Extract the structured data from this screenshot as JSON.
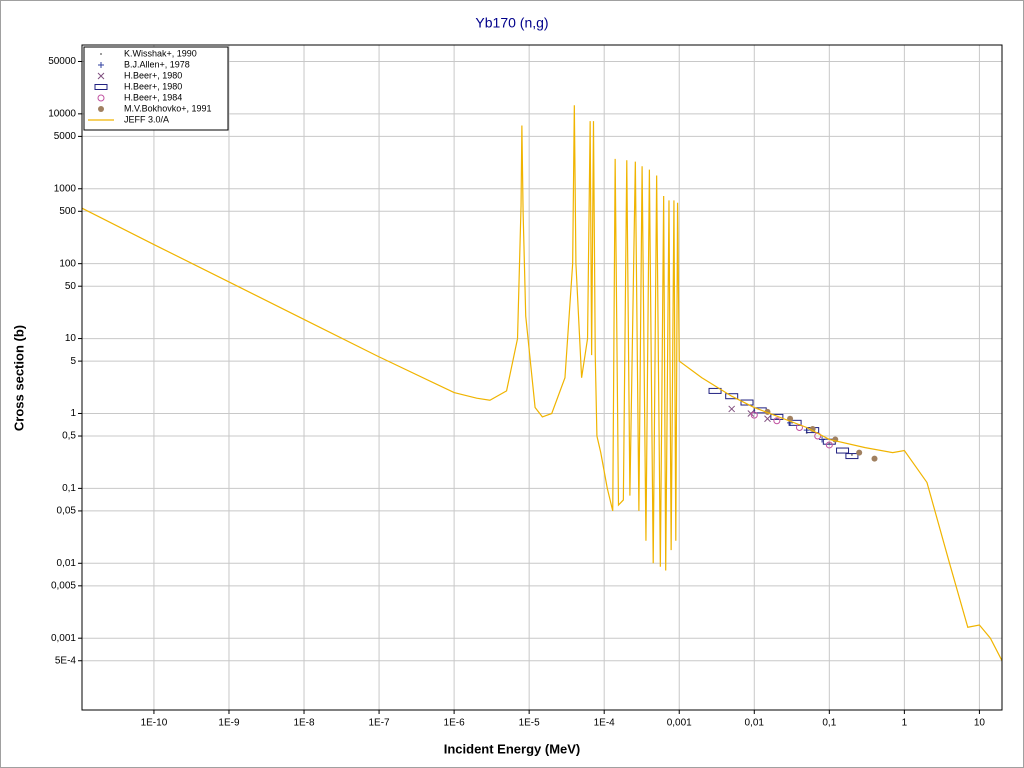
{
  "chart_data": {
    "type": "line",
    "title": "Yb170 (n,g)",
    "x_label": "Incident Energy (MeV)",
    "y_label": "Cross section (b)",
    "log_x": true,
    "log_y": true,
    "grid": true,
    "legend": "upper left",
    "xlim": [
      1.1e-11,
      20
    ],
    "ylim": [
      0.00011,
      83000
    ],
    "xticks": [
      {
        "value": 1e-10,
        "label": "1E-10"
      },
      {
        "value": 1e-09,
        "label": "1E-9"
      },
      {
        "value": 1e-08,
        "label": "1E-8"
      },
      {
        "value": 1e-07,
        "label": "1E-7"
      },
      {
        "value": 1e-06,
        "label": "1E-6"
      },
      {
        "value": 1e-05,
        "label": "1E-5"
      },
      {
        "value": 0.0001,
        "label": "1E-4"
      },
      {
        "value": 0.001,
        "label": "0,001"
      },
      {
        "value": 0.01,
        "label": "0,01"
      },
      {
        "value": 0.1,
        "label": "0,1"
      },
      1,
      10
    ],
    "yticks": [
      50000,
      10000,
      5000,
      1000,
      500,
      100,
      50,
      10,
      5,
      1,
      {
        "value": 0.5,
        "label": "0,5"
      },
      {
        "value": 0.1,
        "label": "0,1"
      },
      {
        "value": 0.05,
        "label": "0,05"
      },
      {
        "value": 0.01,
        "label": "0,01"
      },
      {
        "value": 0.005,
        "label": "0,005"
      },
      {
        "value": 0.001,
        "label": "0,001"
      },
      {
        "value": 0.0005,
        "label": "5E-4"
      }
    ],
    "series": [
      {
        "name": "K.Wisshak+, 1990",
        "type": "scatter",
        "marker": "dot",
        "color": "#808080",
        "x": [
          0.01,
          0.02,
          0.05,
          0.1,
          0.2
        ],
        "values": [
          1.1,
          0.85,
          0.55,
          0.4,
          0.28
        ]
      },
      {
        "name": "B.J.Allen+, 1978",
        "type": "scatter",
        "marker": "plus",
        "color": "#3040a0",
        "x": [
          0.03,
          0.05,
          0.08
        ],
        "values": [
          0.75,
          0.6,
          0.45
        ]
      },
      {
        "name": "H.Beer+, 1980",
        "type": "scatter",
        "marker": "cross",
        "color": "#805080",
        "x": [
          0.005,
          0.009,
          0.015
        ],
        "values": [
          1.15,
          1.0,
          0.85
        ]
      },
      {
        "name": "H.Beer+, 1980",
        "type": "scatter",
        "marker": "square",
        "color": "#202080",
        "x": [
          0.003,
          0.005,
          0.008,
          0.012,
          0.02,
          0.035,
          0.06,
          0.1,
          0.15,
          0.2
        ],
        "values": [
          2.0,
          1.7,
          1.4,
          1.1,
          0.9,
          0.75,
          0.6,
          0.42,
          0.32,
          0.27
        ]
      },
      {
        "name": "H.Beer+, 1984",
        "type": "scatter",
        "marker": "circle",
        "color": "#c050a0",
        "x": [
          0.01,
          0.02,
          0.04,
          0.07,
          0.1
        ],
        "values": [
          0.95,
          0.8,
          0.65,
          0.5,
          0.38
        ]
      },
      {
        "name": "M.V.Bokhovko+, 1991",
        "type": "scatter",
        "marker": "filled",
        "color": "#a08060",
        "x": [
          0.015,
          0.03,
          0.06,
          0.12,
          0.25,
          0.4
        ],
        "values": [
          1.05,
          0.85,
          0.62,
          0.45,
          0.3,
          0.25
        ]
      },
      {
        "name": "JEFF 3.0/A",
        "type": "line",
        "color": "#f0b400",
        "x": [
          1.1e-11,
          1e-10,
          1e-09,
          1e-08,
          1e-07,
          1e-06,
          2e-06,
          3e-06,
          5e-06,
          7e-06,
          7.8e-06,
          8e-06,
          8.3e-06,
          9e-06,
          1.2e-05,
          1.5e-05,
          2e-05,
          3e-05,
          3.8e-05,
          4e-05,
          4.2e-05,
          5e-05,
          6e-05,
          6.5e-05,
          6.8e-05,
          7.2e-05,
          7.6e-05,
          8e-05,
          9e-05,
          0.00011,
          0.00013,
          0.00014,
          0.000155,
          0.00018,
          0.0002,
          0.00022,
          0.00026,
          0.00029,
          0.00032,
          0.00036,
          0.0004,
          0.00045,
          0.0005,
          0.00056,
          0.00062,
          0.00066,
          0.00073,
          0.00078,
          0.00085,
          0.0009,
          0.00095,
          0.001,
          0.002,
          0.005,
          0.01,
          0.05,
          0.1,
          0.3,
          0.7,
          1,
          2,
          4,
          7,
          10,
          14,
          20
        ],
        "values": [
          550,
          180,
          57,
          18,
          5.7,
          1.9,
          1.6,
          1.5,
          2.0,
          10,
          600,
          7000,
          500,
          20,
          1.2,
          0.9,
          1.0,
          3,
          100,
          13000,
          100,
          3,
          10,
          8000,
          6,
          8000,
          6,
          0.5,
          0.3,
          0.1,
          0.05,
          2500,
          0.06,
          0.07,
          2400,
          0.08,
          2300,
          0.05,
          2000,
          0.02,
          1800,
          0.01,
          1500,
          0.009,
          800,
          0.008,
          700,
          0.015,
          700,
          0.02,
          650,
          5,
          3,
          1.7,
          1.2,
          0.65,
          0.45,
          0.35,
          0.3,
          0.32,
          0.12,
          0.01,
          0.0014,
          0.0015,
          0.001,
          0.0005
        ]
      }
    ]
  }
}
